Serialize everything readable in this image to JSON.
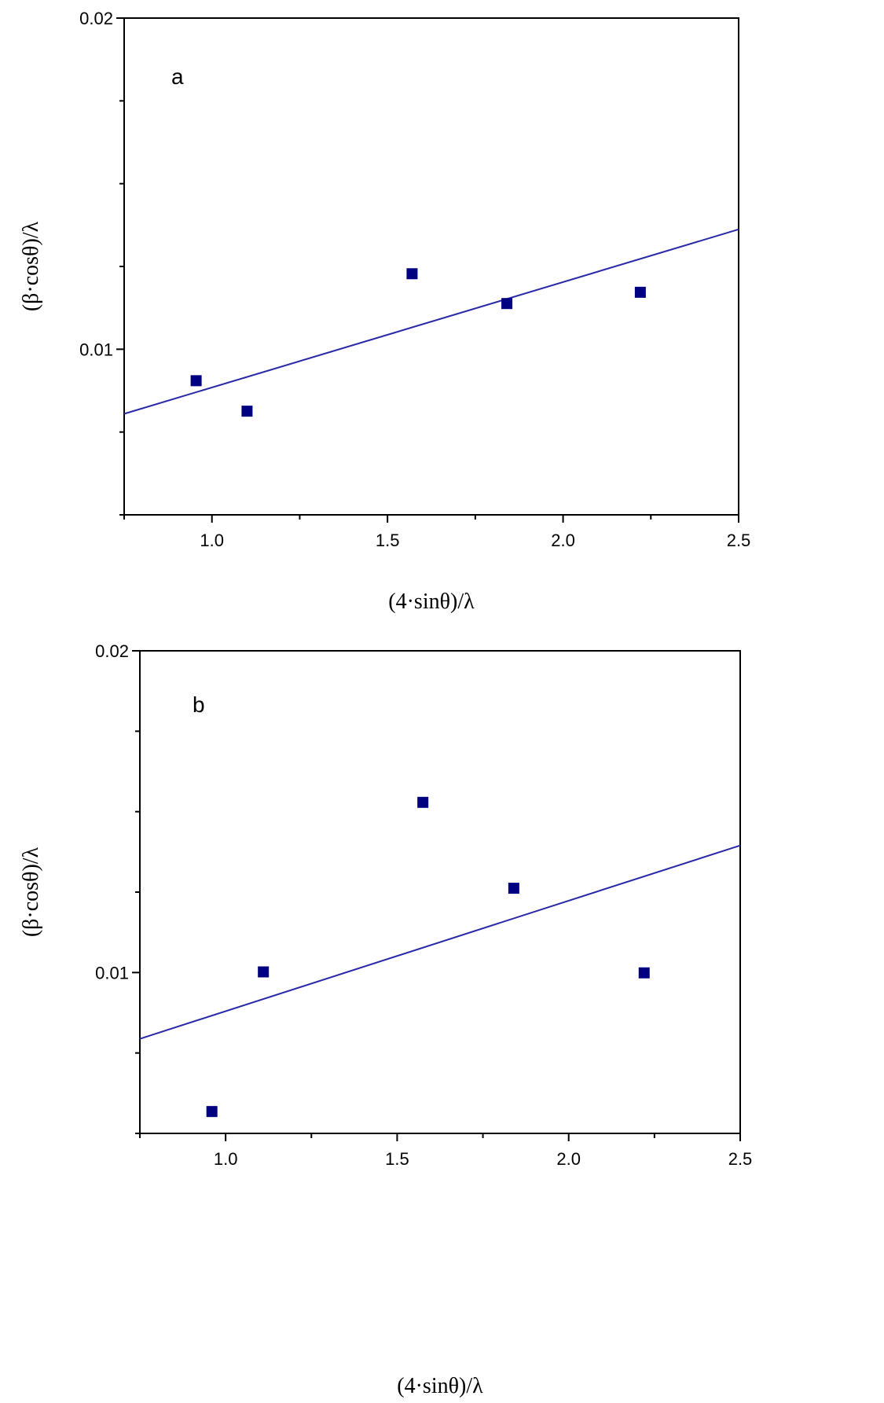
{
  "chart_data": [
    {
      "type": "scatter",
      "panel_label": "a",
      "xlabel": "(4·sinθ)/λ",
      "ylabel": "(β·cosθ)/λ",
      "xlim": [
        0.75,
        2.5
      ],
      "ylim": [
        0.005,
        0.02
      ],
      "x_ticks": [
        1.0,
        1.5,
        2.0,
        2.5
      ],
      "x_tick_labels": [
        "1.0",
        "1.5",
        "2.0",
        "2.5"
      ],
      "y_ticks": [
        0.01,
        0.02
      ],
      "y_tick_labels": [
        "0.01",
        "0.02"
      ],
      "grid": false,
      "marker_color": "#000080",
      "line_color": "#2828a8",
      "points": {
        "x": [
          0.955,
          1.1,
          1.57,
          1.84,
          2.22
        ],
        "y": [
          0.00905,
          0.00813,
          0.01228,
          0.01138,
          0.01172
        ]
      },
      "fit_line": {
        "x": [
          0.75,
          2.5
        ],
        "y": [
          0.00805,
          0.01362
        ]
      }
    },
    {
      "type": "scatter",
      "panel_label": "b",
      "xlabel": "(4·sinθ)/λ",
      "ylabel": "(β·cosθ)/λ",
      "xlim": [
        0.75,
        2.5
      ],
      "ylim": [
        0.005,
        0.02
      ],
      "x_ticks": [
        1.0,
        1.5,
        2.0,
        2.5
      ],
      "x_tick_labels": [
        "1.0",
        "1.5",
        "2.0",
        "2.5"
      ],
      "y_ticks": [
        0.01,
        0.02
      ],
      "y_tick_labels": [
        "0.01",
        "0.02"
      ],
      "grid": false,
      "marker_color": "#000080",
      "line_color": "#2828a8",
      "points": {
        "x": [
          0.96,
          1.11,
          1.575,
          1.84,
          2.22
        ],
        "y": [
          0.00568,
          0.01002,
          0.01529,
          0.01262,
          0.00999
        ]
      },
      "fit_line": {
        "x": [
          0.75,
          2.5
        ],
        "y": [
          0.00794,
          0.01395
        ]
      }
    }
  ]
}
